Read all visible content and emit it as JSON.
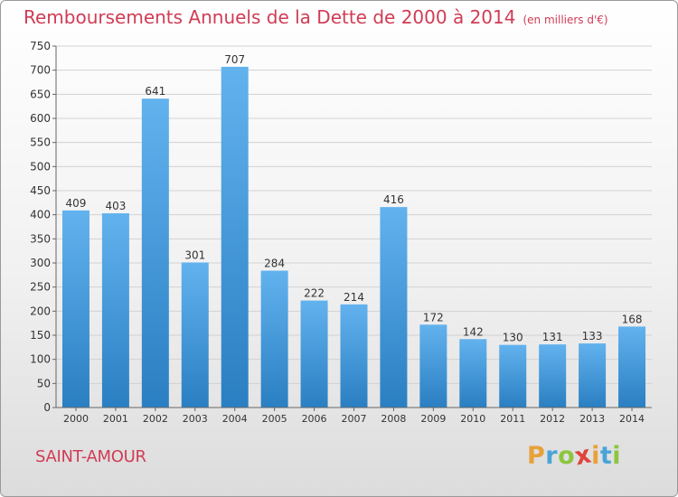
{
  "header": {
    "title": "Remboursements Annuels de la Dette de 2000 à 2014",
    "unit": "(en milliers d'€)"
  },
  "footer": {
    "commune": "SAINT-AMOUR",
    "logo_letters": [
      {
        "ch": "P",
        "color": "#e8a13a"
      },
      {
        "ch": "r",
        "color": "#4aa3d8"
      },
      {
        "ch": "o",
        "color": "#8cc63f"
      },
      {
        "ch": "x",
        "color": "#e0443c"
      },
      {
        "ch": "i",
        "color": "#e8a13a"
      },
      {
        "ch": "t",
        "color": "#4aa3d8"
      },
      {
        "ch": "i",
        "color": "#8cc63f"
      }
    ]
  },
  "chart_data": {
    "type": "bar",
    "title": "Remboursements Annuels de la Dette de 2000 à 2014",
    "unit": "(en milliers d'€)",
    "categories": [
      "2000",
      "2001",
      "2002",
      "2003",
      "2004",
      "2005",
      "2006",
      "2007",
      "2008",
      "2009",
      "2010",
      "2011",
      "2012",
      "2013",
      "2014"
    ],
    "values": [
      409,
      403,
      641,
      301,
      707,
      284,
      222,
      214,
      416,
      172,
      142,
      130,
      131,
      133,
      168
    ],
    "ylim": [
      0,
      750
    ],
    "yticks": [
      0,
      50,
      100,
      150,
      200,
      250,
      300,
      350,
      400,
      450,
      500,
      550,
      600,
      650,
      700,
      750
    ],
    "grid": true,
    "data_labels": true,
    "bar_color_top": "#62b2ee",
    "bar_color_bottom": "#2a7fc2"
  }
}
